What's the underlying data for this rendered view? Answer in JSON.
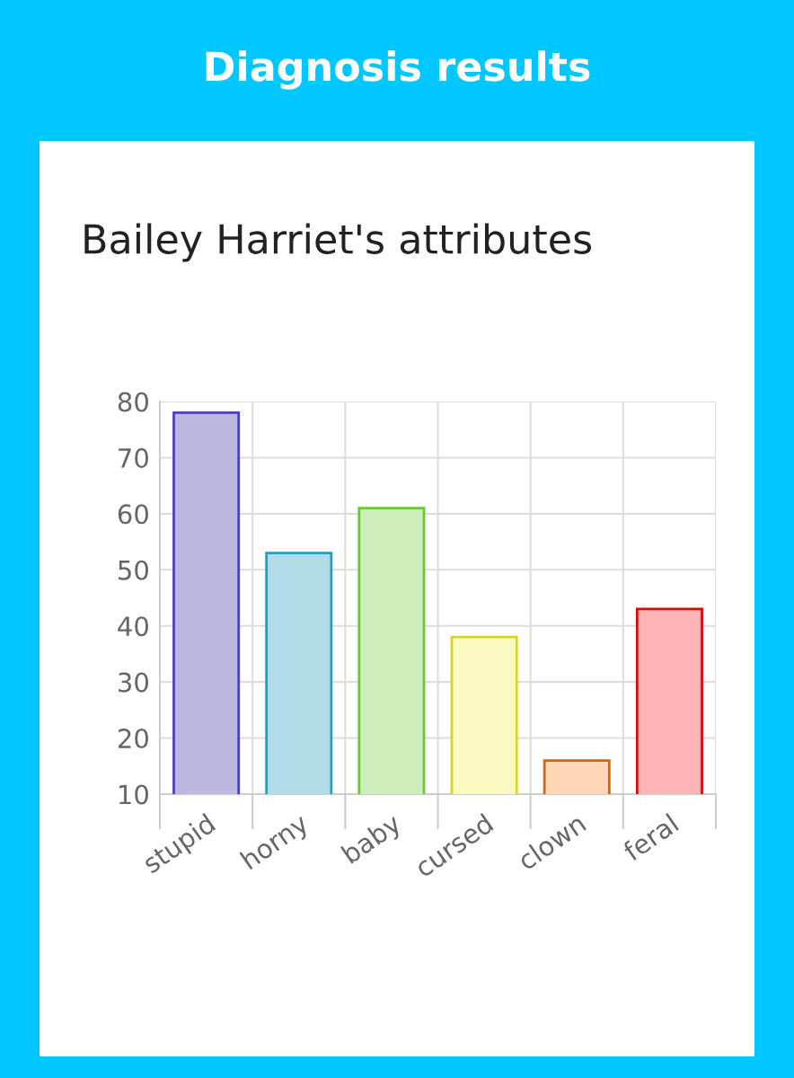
{
  "chart_data": {
    "type": "bar",
    "title": "Diagnosis results",
    "subtitle": "Bailey Harriet's attributes",
    "categories": [
      "stupid",
      "horny",
      "baby",
      "cursed",
      "clown",
      "feral"
    ],
    "values": [
      78,
      53,
      61,
      38,
      16,
      43
    ],
    "colors": [
      "#bcb8e0",
      "#b0dbe8",
      "#cdedbb",
      "#fafac0",
      "#fed5b5",
      "#ffb5b5"
    ],
    "ylim": [
      10,
      80
    ],
    "yticks": [
      10,
      20,
      30,
      40,
      50,
      60,
      70,
      80
    ],
    "grid": true
  }
}
